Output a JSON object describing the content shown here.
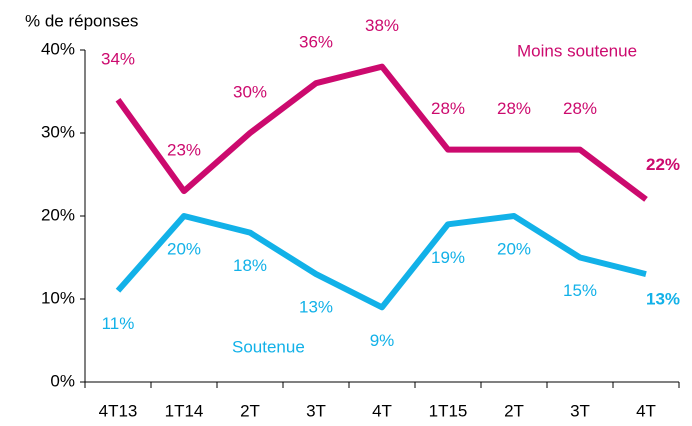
{
  "chart_data": {
    "type": "line",
    "y_label": "% de réponses",
    "categories": [
      "4T13",
      "1T14",
      "2T",
      "3T",
      "4T",
      "1T15",
      "2T",
      "3T",
      "4T"
    ],
    "series": [
      {
        "name": "Moins soutenue",
        "color": "#cc0a6e",
        "values": [
          34,
          23,
          30,
          36,
          38,
          28,
          28,
          28,
          22
        ],
        "value_labels": [
          "34%",
          "23%",
          "30%",
          "36%",
          "38%",
          "28%",
          "28%",
          "28%",
          "22%"
        ]
      },
      {
        "name": "Soutenue",
        "color": "#12b1e8",
        "values": [
          11,
          20,
          18,
          13,
          9,
          19,
          20,
          15,
          13
        ],
        "value_labels": [
          "11%",
          "20%",
          "18%",
          "13%",
          "9%",
          "19%",
          "20%",
          "15%",
          "13%"
        ]
      }
    ],
    "ylim": [
      0,
      40
    ],
    "yticks": [
      {
        "value": 0,
        "label": "0%"
      },
      {
        "value": 10,
        "label": "10%"
      },
      {
        "value": 20,
        "label": "20%"
      },
      {
        "value": 30,
        "label": "30%"
      },
      {
        "value": 40,
        "label": "40%"
      }
    ],
    "grid": false
  }
}
